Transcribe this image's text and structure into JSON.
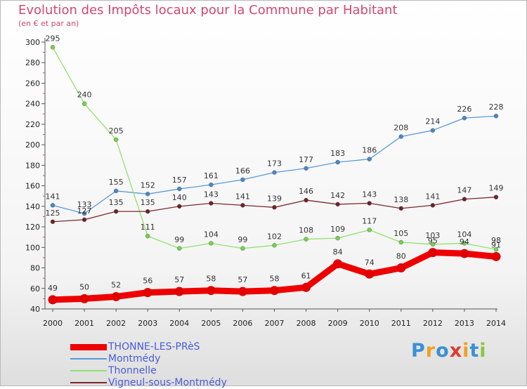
{
  "chart_data": {
    "type": "line",
    "title": "Evolution des Impôts locaux pour la Commune par Habitant",
    "subtitle": "(en € et par an)",
    "categories": [
      "2000",
      "2001",
      "2002",
      "2003",
      "2004",
      "2005",
      "2006",
      "2007",
      "2008",
      "2009",
      "2010",
      "2011",
      "2012",
      "2013",
      "2014"
    ],
    "yticks": [
      40,
      60,
      80,
      100,
      120,
      140,
      160,
      180,
      200,
      220,
      240,
      260,
      280,
      300
    ],
    "ylim": [
      40,
      300
    ],
    "grid": false,
    "legend_position": "bottom-left",
    "series": [
      {
        "name": "Montmédy",
        "color": "#5b9bd5",
        "dot": "#4a86c8",
        "width": 1.3,
        "values": [
          141,
          133,
          155,
          152,
          157,
          161,
          166,
          173,
          177,
          183,
          186,
          208,
          214,
          226,
          228
        ]
      },
      {
        "name": "Thonnelle",
        "color": "#8ee36e",
        "dot": "#74d14e",
        "width": 1.3,
        "values": [
          295,
          240,
          205,
          111,
          99,
          104,
          99,
          102,
          108,
          109,
          117,
          105,
          103,
          104,
          98
        ]
      },
      {
        "name": "Vigneul-sous-Montmédy",
        "color": "#7a2a2e",
        "dot": "#6e2226",
        "width": 1.3,
        "values": [
          125,
          127,
          135,
          135,
          140,
          143,
          141,
          139,
          146,
          142,
          143,
          138,
          141,
          147,
          149
        ]
      },
      {
        "name": "THONNE-LES-PRèS",
        "color": "#ee0000",
        "dot": "#e00000",
        "width": 9,
        "values": [
          49,
          50,
          52,
          56,
          57,
          58,
          57,
          58,
          61,
          84,
          74,
          80,
          95,
          94,
          91
        ]
      }
    ]
  },
  "legend": [
    {
      "label": "THONNE-LES-PRèS",
      "color": "#ee0000",
      "thickness": 9
    },
    {
      "label": "Montmédy",
      "color": "#5b9bd5",
      "thickness": 2
    },
    {
      "label": "Thonnelle",
      "color": "#8ee36e",
      "thickness": 2
    },
    {
      "label": "Vigneul-sous-Montmédy",
      "color": "#7a2a2e",
      "thickness": 2
    }
  ],
  "brand": {
    "letters": [
      "P",
      "r",
      "o",
      "x",
      "i",
      "t",
      "i"
    ],
    "colors": [
      "#3a8fd8",
      "#f2a01c",
      "#3a8fd8",
      "#e03a2f",
      "#f2a01c",
      "#3a8fd8",
      "#8cc63f"
    ]
  }
}
